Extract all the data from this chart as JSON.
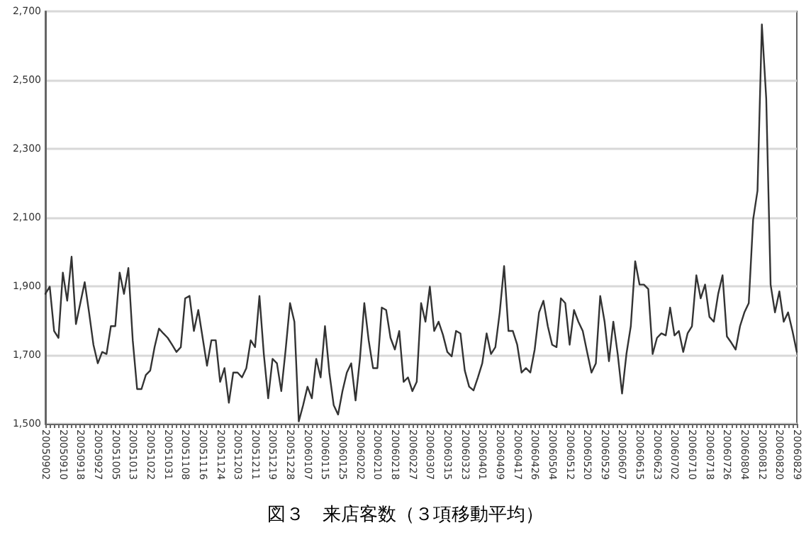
{
  "chart_data": {
    "type": "line",
    "title": "図３　来店客数（３項移動平均）",
    "categories": [
      "20050902",
      null,
      null,
      null,
      "20050910",
      null,
      null,
      null,
      "20050918",
      null,
      null,
      null,
      "20050927",
      null,
      null,
      null,
      "20051005",
      null,
      null,
      null,
      "20051013",
      null,
      null,
      null,
      "20051022",
      null,
      null,
      null,
      "20051031",
      null,
      null,
      null,
      "20051108",
      null,
      null,
      null,
      "20051116",
      null,
      null,
      null,
      "20051124",
      null,
      null,
      null,
      "20051203",
      null,
      null,
      null,
      "20051211",
      null,
      null,
      null,
      "20051219",
      null,
      null,
      null,
      "20051228",
      null,
      null,
      null,
      "20060107",
      null,
      null,
      null,
      "20060115",
      null,
      null,
      null,
      "20060125",
      null,
      null,
      null,
      "20060202",
      null,
      null,
      null,
      "20060210",
      null,
      null,
      null,
      "20060218",
      null,
      null,
      null,
      "20060227",
      null,
      null,
      null,
      "20060307",
      null,
      null,
      null,
      "20060315",
      null,
      null,
      null,
      "20060323",
      null,
      null,
      null,
      "20060401",
      null,
      null,
      null,
      "20060409",
      null,
      null,
      null,
      "20060417",
      null,
      null,
      null,
      "20060426",
      null,
      null,
      null,
      "20060504",
      null,
      null,
      null,
      "20060512",
      null,
      null,
      null,
      "20060520",
      null,
      null,
      null,
      "20060529",
      null,
      null,
      null,
      "20060607",
      null,
      null,
      null,
      "20060615",
      null,
      null,
      null,
      "20060623",
      null,
      null,
      null,
      "20060702",
      null,
      null,
      null,
      "20060710",
      null,
      null,
      null,
      "20060718",
      null,
      null,
      null,
      "20060726",
      null,
      null,
      null,
      "20060804",
      null,
      null,
      null,
      "20060812",
      null,
      null,
      null,
      "20060820",
      null,
      null,
      null,
      "20060829"
    ],
    "series": [
      {
        "color": "#333333",
        "values": [
          1878,
          1899,
          1770,
          1750,
          1940,
          1858,
          1986,
          1790,
          1851,
          1912,
          1824,
          1730,
          1676,
          1709,
          1703,
          1784,
          1784,
          1940,
          1878,
          1953,
          1743,
          1601,
          1601,
          1642,
          1655,
          1723,
          1777,
          1763,
          1750,
          1730,
          1709,
          1723,
          1865,
          1872,
          1770,
          1831,
          1750,
          1669,
          1743,
          1743,
          1622,
          1662,
          1561,
          1649,
          1649,
          1635,
          1662,
          1743,
          1723,
          1872,
          1703,
          1574,
          1689,
          1676,
          1595,
          1716,
          1851,
          1797,
          1507,
          1554,
          1608,
          1574,
          1689,
          1635,
          1784,
          1649,
          1554,
          1527,
          1595,
          1649,
          1676,
          1568,
          1689,
          1851,
          1743,
          1662,
          1662,
          1838,
          1831,
          1750,
          1716,
          1770,
          1622,
          1635,
          1595,
          1622,
          1851,
          1797,
          1899,
          1770,
          1797,
          1759,
          1709,
          1696,
          1770,
          1763,
          1655,
          1608,
          1597,
          1635,
          1676,
          1763,
          1703,
          1723,
          1824,
          1959,
          1770,
          1770,
          1730,
          1649,
          1662,
          1649,
          1716,
          1824,
          1858,
          1784,
          1730,
          1723,
          1865,
          1851,
          1730,
          1831,
          1797,
          1770,
          1709,
          1649,
          1676,
          1872,
          1797,
          1682,
          1797,
          1703,
          1588,
          1703,
          1784,
          1973,
          1905,
          1905,
          1892,
          1703,
          1750,
          1763,
          1757,
          1838,
          1757,
          1770,
          1709,
          1763,
          1784,
          1932,
          1865,
          1905,
          1811,
          1797,
          1878,
          1932,
          1754,
          1736,
          1716,
          1784,
          1824,
          1851,
          2094,
          2178,
          2662,
          2446,
          1905,
          1824,
          1885,
          1797,
          1824,
          1770,
          1709
        ]
      }
    ],
    "ylim": [
      1500,
      2700
    ],
    "yticks": [
      {
        "value": 1500,
        "label": "1,500"
      },
      {
        "value": 1700,
        "label": "1,700"
      },
      {
        "value": 1900,
        "label": "1,900"
      },
      {
        "value": 2100,
        "label": "2,100"
      },
      {
        "value": 2300,
        "label": "2,300"
      },
      {
        "value": 2500,
        "label": "2,500"
      },
      {
        "value": 2700,
        "label": "2,700"
      }
    ],
    "grid": "y",
    "marker": "none",
    "line_style": "solid"
  }
}
